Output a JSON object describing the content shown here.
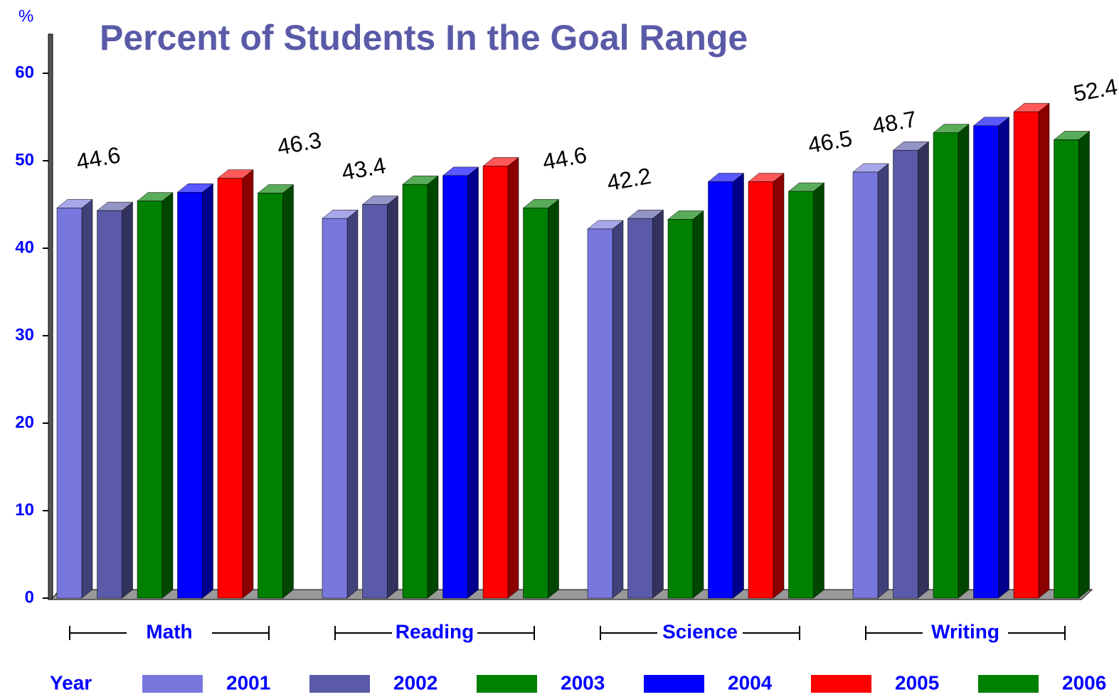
{
  "chart_data": {
    "type": "bar3d",
    "title": "Percent of Students In the Goal Range",
    "y_axis_label": "%",
    "categories": [
      "Math",
      "Reading",
      "Science",
      "Writing"
    ],
    "legend_title": "Year",
    "series": [
      {
        "name": "2001",
        "color": "#7777dd",
        "values": [
          44.6,
          43.4,
          42.2,
          48.7
        ],
        "value_labels": [
          "44.6",
          "43.4",
          "42.2",
          "48.7"
        ]
      },
      {
        "name": "2002",
        "color": "#5a5aa8",
        "values": [
          44.3,
          45.0,
          43.4,
          51.2
        ]
      },
      {
        "name": "2003",
        "color": "#008000",
        "values": [
          45.4,
          47.3,
          43.3,
          53.2
        ]
      },
      {
        "name": "2004",
        "color": "#0000ff",
        "values": [
          46.4,
          48.3,
          47.6,
          54.0
        ]
      },
      {
        "name": "2005",
        "color": "#ff0000",
        "values": [
          48.0,
          49.4,
          47.6,
          55.6
        ]
      },
      {
        "name": "2006",
        "color": "#008000",
        "values": [
          46.3,
          44.6,
          46.5,
          52.4
        ],
        "value_labels": [
          "46.3",
          "44.6",
          "46.5",
          "52.4"
        ]
      }
    ],
    "ylim": [
      0,
      60
    ],
    "yticks": [
      0,
      10,
      20,
      30,
      40,
      50,
      60
    ]
  }
}
